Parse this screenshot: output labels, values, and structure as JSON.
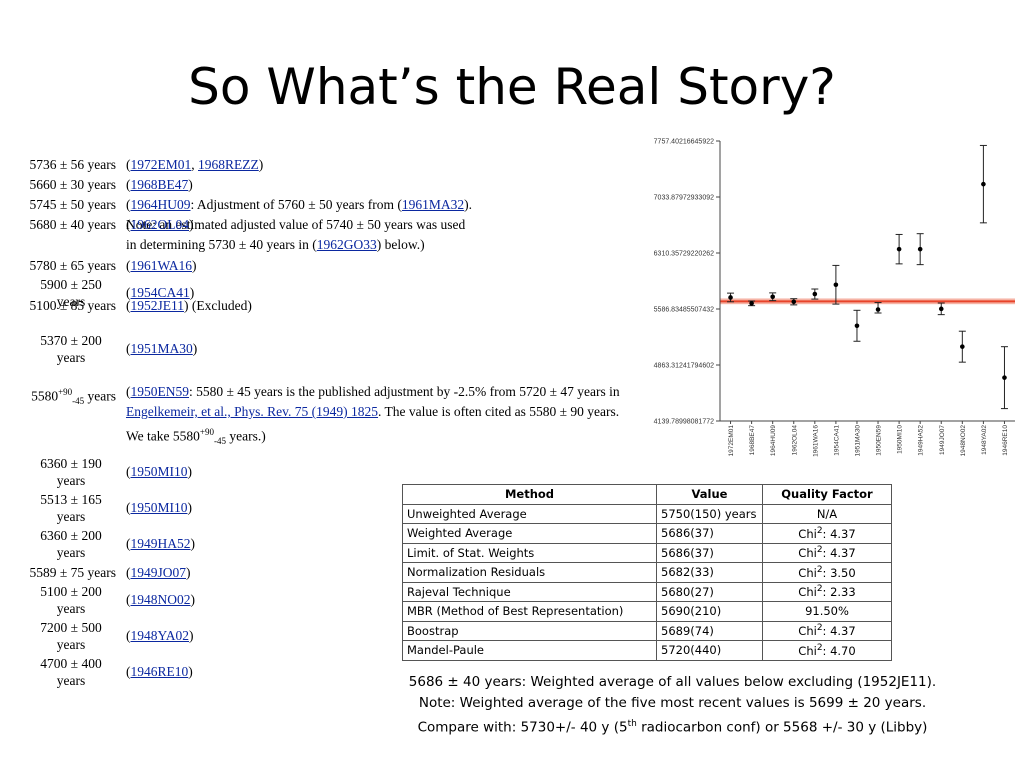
{
  "title": "So What’s the Real Story?",
  "entries": [
    {
      "value": "5736 ± 56 years",
      "ref_html": "(<a>1972EM01</a>, <a>1968REZZ</a>)"
    },
    {
      "value": "5660 ± 30 years",
      "ref_html": "(<a>1968BE47</a>)"
    },
    {
      "value": "5745 ± 50 years",
      "ref_html": "(<a>1964HU09</a>: Adjustment of 5760 ± 50 years from (<a>1961MA32</a>).<br>Note: an estimated adjusted value of 5740 ± 50 years was used<br>in determining 5730 ± 40 years in (<a>1962GO33</a>) below.)"
    },
    {
      "value": "5680 ± 40 years",
      "ref_html": "(<a>1962OL04</a>)"
    },
    {
      "value": "5780 ± 65 years",
      "ref_html": "(<a>1961WA16</a>)"
    },
    {
      "value": "5900 ± 250 years",
      "value_lines": [
        "5900 ± 250",
        "years"
      ],
      "ref_html": "(<a>1954CA41</a>)"
    },
    {
      "value": "5100 ± 85 years",
      "ref_html": "(<a>1952JE11</a>) (Excluded)"
    },
    {
      "value": "5370 ± 200 years",
      "value_lines": [
        "5370 ± 200",
        "years"
      ],
      "ref_html": "(<a>1951MA30</a>)"
    },
    {
      "value_html": "5580<sup>+90</sup><sub>-45</sub> years",
      "ref_html": "(<a>1950EN59</a>: 5580 ± 45 years is the published adjustment by -2.5% from 5720 ± 47 years in<br><a>Engelkemeir, et al., Phys. Rev. 75 (1949) 1825</a>. The value is often cited as 5580 ± 90 years.<br>We take 5580<sup>+90</sup><sub>-45</sub> years.)"
    },
    {
      "value": "6360 ± 190 years",
      "value_lines": [
        "6360 ± 190",
        "years"
      ],
      "ref_html": "(<a>1950MI10</a>)"
    },
    {
      "value": "5513 ± 165 years",
      "value_lines": [
        "5513 ± 165",
        "years"
      ],
      "ref_html": "(<a>1950MI10</a>)"
    },
    {
      "value": "6360 ± 200 years",
      "value_lines": [
        "6360 ± 200",
        "years"
      ],
      "ref_html": "(<a>1949HA52</a>)"
    },
    {
      "value": "5589 ± 75 years",
      "ref_html": "(<a>1949JO07</a>)"
    },
    {
      "value": "5100 ± 200 years",
      "value_lines": [
        "5100 ± 200",
        "years"
      ],
      "ref_html": "(<a>1948NO02</a>)"
    },
    {
      "value": "7200 ± 500 years",
      "value_lines": [
        "7200 ± 500",
        "years"
      ],
      "ref_html": "(<a>1948YA02</a>)"
    },
    {
      "value": "4700 ± 400 years",
      "value_lines": [
        "4700 ± 400",
        "years"
      ],
      "ref_html": "(<a>1946RE10</a>)"
    }
  ],
  "chart_data": {
    "type": "scatter",
    "yticks": [
      "7757.40216645922",
      "7033.87972933092",
      "6310.35729220262",
      "5586.83485507432",
      "4863.31241794602",
      "4139.78998081772"
    ],
    "ylim": [
      4139.79,
      7757.4
    ],
    "categories": [
      "1972EM01",
      "1968BE47",
      "1964HU09",
      "1962OL04",
      "1961WA16",
      "1954CA41",
      "1951MA30",
      "1950EN59",
      "1950MI10",
      "1949HA52",
      "1949JO07",
      "1948NO02",
      "1948YA02",
      "1946RE10"
    ],
    "values": [
      5736,
      5660,
      5745,
      5680,
      5780,
      5900,
      5370,
      5580,
      6360,
      6360,
      5589,
      5100,
      7200,
      4700
    ],
    "err_up": [
      56,
      30,
      50,
      40,
      65,
      250,
      200,
      90,
      190,
      200,
      75,
      200,
      500,
      400
    ],
    "err_down": [
      56,
      30,
      50,
      40,
      65,
      250,
      200,
      45,
      190,
      200,
      75,
      200,
      500,
      400
    ],
    "reference_line": 5686,
    "reference_band": 37,
    "colors": {
      "reference": "#e8432a",
      "band": "#f6b4a6",
      "points": "#000000"
    },
    "grid": false
  },
  "table": {
    "headers": [
      "Method",
      "Value",
      "Quality Factor"
    ],
    "rows": [
      {
        "method": "Unweighted Average",
        "value": "5750(150) years",
        "quality": "N/A"
      },
      {
        "method": "Weighted Average",
        "value": "5686(37)",
        "quality_html": "Chi<sup>2</sup>: 4.37"
      },
      {
        "method": "Limit. of Stat. Weights",
        "value": "5686(37)",
        "quality_html": "Chi<sup>2</sup>: 4.37"
      },
      {
        "method": "Normalization Residuals",
        "value": "5682(33)",
        "quality_html": "Chi<sup>2</sup>: 3.50"
      },
      {
        "method": "Rajeval Technique",
        "value": "5680(27)",
        "quality_html": "Chi<sup>2</sup>: 2.33"
      },
      {
        "method": "MBR (Method of Best Representation)",
        "value": "5690(210)",
        "quality": "91.50%"
      },
      {
        "method": "Boostrap",
        "value": "5689(74)",
        "quality_html": "Chi<sup>2</sup>: 4.37"
      },
      {
        "method": "Mandel-Paule",
        "value": "5720(440)",
        "quality_html": "Chi<sup>2</sup>: 4.70"
      }
    ]
  },
  "notes": [
    "5686 ± 40 years: Weighted average of all values below excluding (1952JE11).",
    "Note: Weighted average of the five most recent values is 5699 ± 20 years."
  ],
  "notes_compare_html": "Compare with:  5730+/- 40 y (5<sup>th</sup> radiocarbon conf) or 5568 +/- 30 y (Libby)"
}
